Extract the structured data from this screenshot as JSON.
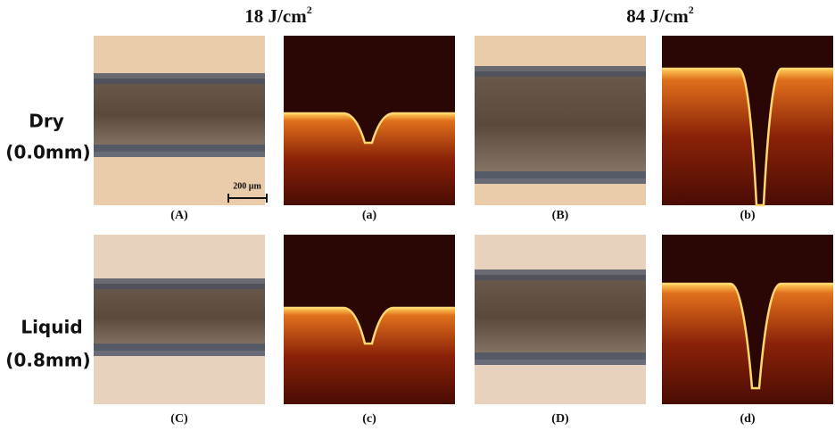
{
  "columns": [
    {
      "text": "18 J/cm",
      "sup": "2"
    },
    {
      "text": "84 J/cm",
      "sup": "2"
    }
  ],
  "rows": [
    {
      "label": "Dry",
      "sublabel": "(0.0mm)"
    },
    {
      "label": "Liquid",
      "sublabel": "(0.8mm)"
    }
  ],
  "panels": [
    "(A)",
    "(a)",
    "(B)",
    "(b)",
    "(C)",
    "(c)",
    "(D)",
    "(d)"
  ],
  "scale_bar": "200 µm"
}
